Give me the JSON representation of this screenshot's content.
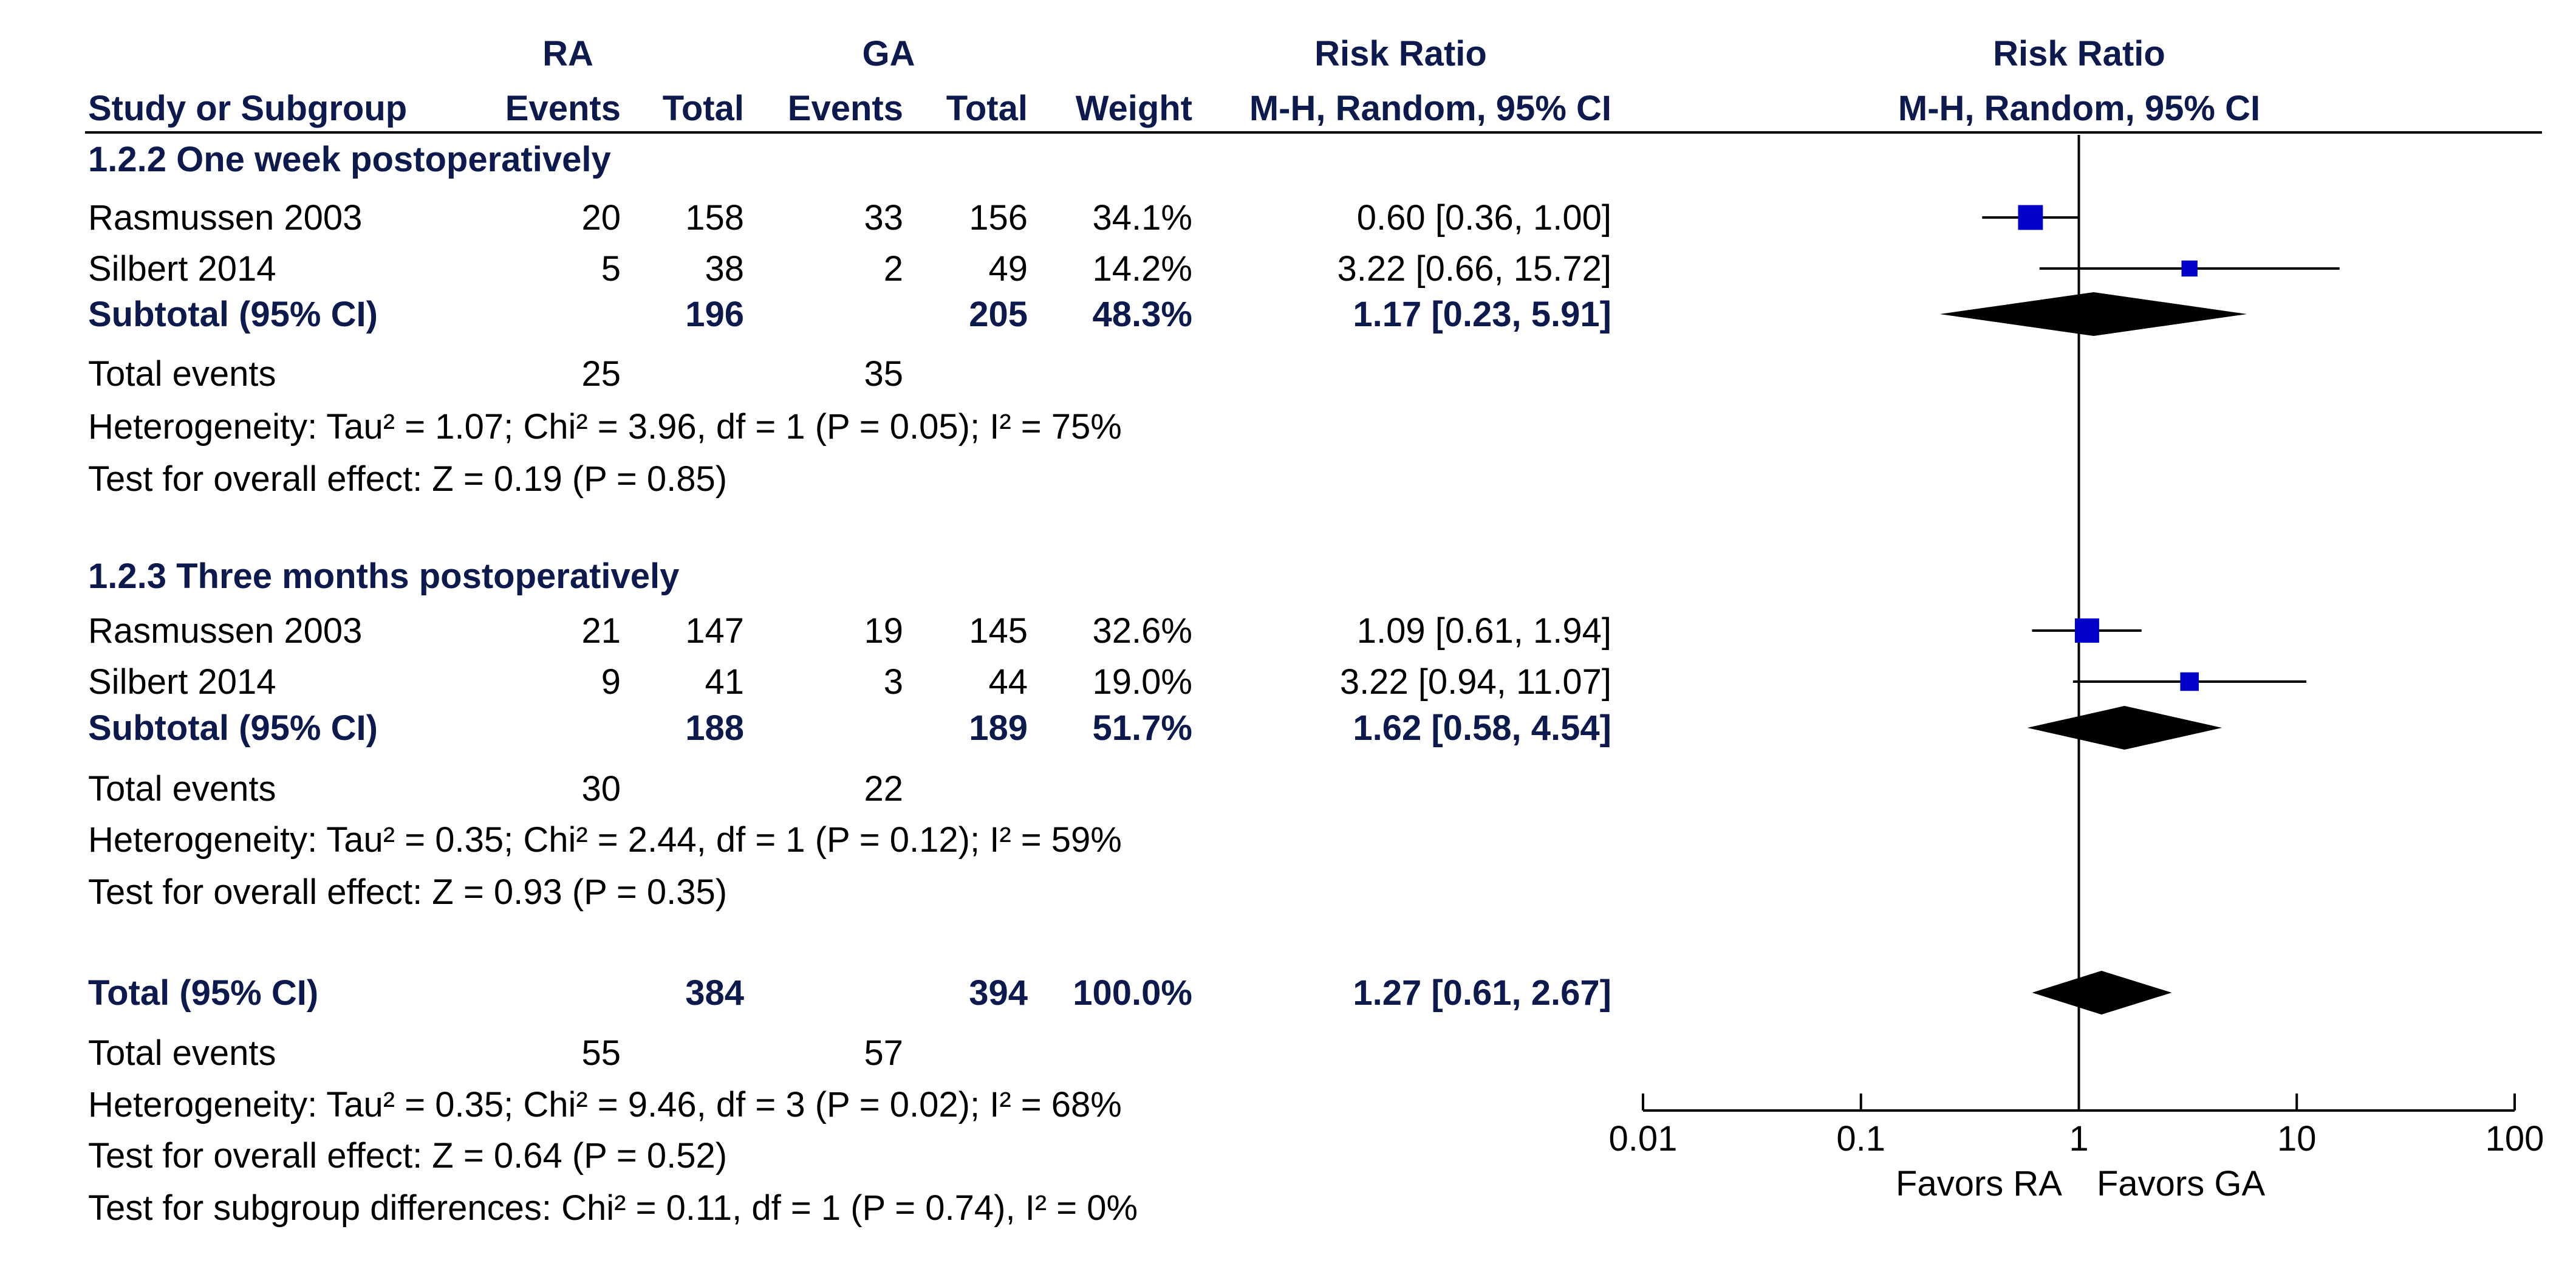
{
  "header": {
    "group1": "RA",
    "group2": "GA",
    "left_risk_ratio": "Risk Ratio",
    "right_risk_ratio": "Risk Ratio",
    "study_or_subgroup": "Study or Subgroup",
    "events1": "Events",
    "total1": "Total",
    "events2": "Events",
    "total2": "Total",
    "weight": "Weight",
    "method_left": "M-H, Random, 95% CI",
    "method_right": "M-H, Random, 95% CI"
  },
  "subgroups": [
    {
      "title": "1.2.2 One week postoperatively",
      "studies": [
        {
          "name": "Rasmussen 2003",
          "e1": "20",
          "t1": "158",
          "e2": "33",
          "t2": "156",
          "weight": "34.1%",
          "ci": "0.60 [0.36, 1.00]"
        },
        {
          "name": "Silbert 2014",
          "e1": "5",
          "t1": "38",
          "e2": "2",
          "t2": "49",
          "weight": "14.2%",
          "ci": "3.22 [0.66, 15.72]"
        }
      ],
      "subtotal": {
        "label": "Subtotal (95% CI)",
        "t1": "196",
        "t2": "205",
        "weight": "48.3%",
        "ci": "1.17 [0.23, 5.91]"
      },
      "total_events": {
        "label": "Total events",
        "e1": "25",
        "e2": "35"
      },
      "heterogeneity": "Heterogeneity: Tau² = 1.07; Chi² = 3.96, df = 1 (P = 0.05); I² = 75%",
      "overall_effect": "Test for overall effect: Z = 0.19 (P = 0.85)"
    },
    {
      "title": "1.2.3 Three months postoperatively",
      "studies": [
        {
          "name": "Rasmussen 2003",
          "e1": "21",
          "t1": "147",
          "e2": "19",
          "t2": "145",
          "weight": "32.6%",
          "ci": "1.09 [0.61, 1.94]"
        },
        {
          "name": "Silbert 2014",
          "e1": "9",
          "t1": "41",
          "e2": "3",
          "t2": "44",
          "weight": "19.0%",
          "ci": "3.22 [0.94, 11.07]"
        }
      ],
      "subtotal": {
        "label": "Subtotal (95% CI)",
        "t1": "188",
        "t2": "189",
        "weight": "51.7%",
        "ci": "1.62 [0.58, 4.54]"
      },
      "total_events": {
        "label": "Total events",
        "e1": "30",
        "e2": "22"
      },
      "heterogeneity": "Heterogeneity: Tau² = 0.35; Chi² = 2.44, df = 1 (P = 0.12); I² = 59%",
      "overall_effect": "Test for overall effect: Z = 0.93 (P = 0.35)"
    }
  ],
  "total": {
    "label": "Total (95% CI)",
    "t1": "384",
    "t2": "394",
    "weight": "100.0%",
    "ci": "1.27 [0.61, 2.67]",
    "total_events": {
      "label": "Total events",
      "e1": "55",
      "e2": "57"
    },
    "heterogeneity": "Heterogeneity: Tau² = 0.35; Chi² = 9.46, df = 3 (P = 0.02); I² = 68%",
    "overall_effect": "Test for overall effect: Z = 0.64 (P = 0.52)",
    "subgroup_differences": "Test for subgroup differences: Chi² = 0.11, df = 1 (P = 0.74), I² = 0%"
  },
  "chart_data": {
    "type": "forest",
    "x_scale": "log",
    "xlim": [
      0.01,
      100
    ],
    "ticks": [
      "0.01",
      "0.1",
      "1",
      "10",
      "100"
    ],
    "favors_left": "Favors RA",
    "favors_right": "Favors GA",
    "reference_line": 1,
    "colors": {
      "study_marker": "#0000c8",
      "diamond": "#000000"
    },
    "studies": [
      {
        "subgroup": 0,
        "name": "Rasmussen 2003",
        "rr": 0.6,
        "lo": 0.36,
        "hi": 1.0,
        "weight": 34.1
      },
      {
        "subgroup": 0,
        "name": "Silbert 2014",
        "rr": 3.22,
        "lo": 0.66,
        "hi": 15.72,
        "weight": 14.2
      },
      {
        "subgroup": 1,
        "name": "Rasmussen 2003",
        "rr": 1.09,
        "lo": 0.61,
        "hi": 1.94,
        "weight": 32.6
      },
      {
        "subgroup": 1,
        "name": "Silbert 2014",
        "rr": 3.22,
        "lo": 0.94,
        "hi": 11.07,
        "weight": 19.0
      }
    ],
    "diamonds": [
      {
        "name": "Subtotal 1.2.2",
        "rr": 1.17,
        "lo": 0.23,
        "hi": 5.91
      },
      {
        "name": "Subtotal 1.2.3",
        "rr": 1.62,
        "lo": 0.58,
        "hi": 4.54
      },
      {
        "name": "Total",
        "rr": 1.27,
        "lo": 0.61,
        "hi": 2.67
      }
    ]
  }
}
